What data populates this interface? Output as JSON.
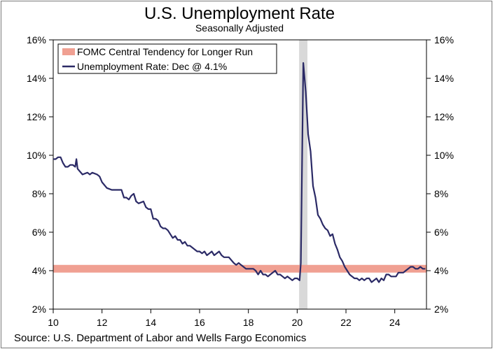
{
  "chart_data": {
    "type": "line",
    "title": "U.S. Unemployment Rate",
    "subtitle": "Seasonally Adjusted",
    "xlabel": "",
    "ylabel": "",
    "source": "Source: U.S. Department of Labor and Wells Fargo Economics",
    "xlim": [
      2010,
      2025.3
    ],
    "ylim": [
      2,
      16
    ],
    "x_ticks": [
      10,
      12,
      14,
      16,
      18,
      20,
      22,
      24
    ],
    "y_ticks": [
      2,
      4,
      6,
      8,
      10,
      12,
      14,
      16
    ],
    "y_tick_suffix": "%",
    "grid": false,
    "legend_placement": "top-left",
    "recession_band": {
      "start": 2020.08,
      "end": 2020.42,
      "color": "#d9d9d9"
    },
    "fomc_band": {
      "name": "FOMC Central Tendency for Longer Run",
      "low": 3.9,
      "high": 4.3,
      "color": "#f0a092"
    },
    "series": [
      {
        "name": "Unemployment Rate: Dec @ 4.1%",
        "color": "#2b2a66",
        "points": [
          [
            2010.0,
            9.8
          ],
          [
            2010.1,
            9.8
          ],
          [
            2010.2,
            9.9
          ],
          [
            2010.3,
            9.9
          ],
          [
            2010.4,
            9.6
          ],
          [
            2010.5,
            9.4
          ],
          [
            2010.6,
            9.4
          ],
          [
            2010.7,
            9.5
          ],
          [
            2010.8,
            9.5
          ],
          [
            2010.9,
            9.4
          ],
          [
            2010.95,
            9.8
          ],
          [
            2011.0,
            9.3
          ],
          [
            2011.2,
            9.0
          ],
          [
            2011.4,
            9.1
          ],
          [
            2011.5,
            9.0
          ],
          [
            2011.6,
            9.1
          ],
          [
            2011.8,
            9.0
          ],
          [
            2011.9,
            8.9
          ],
          [
            2012.0,
            8.6
          ],
          [
            2012.2,
            8.3
          ],
          [
            2012.4,
            8.2
          ],
          [
            2012.6,
            8.2
          ],
          [
            2012.8,
            8.2
          ],
          [
            2012.9,
            7.8
          ],
          [
            2013.0,
            7.8
          ],
          [
            2013.1,
            7.7
          ],
          [
            2013.2,
            7.9
          ],
          [
            2013.3,
            8.0
          ],
          [
            2013.4,
            7.6
          ],
          [
            2013.5,
            7.5
          ],
          [
            2013.7,
            7.6
          ],
          [
            2013.8,
            7.3
          ],
          [
            2013.9,
            7.2
          ],
          [
            2014.0,
            7.2
          ],
          [
            2014.1,
            6.7
          ],
          [
            2014.2,
            6.7
          ],
          [
            2014.3,
            6.6
          ],
          [
            2014.4,
            6.3
          ],
          [
            2014.5,
            6.2
          ],
          [
            2014.6,
            6.2
          ],
          [
            2014.7,
            6.1
          ],
          [
            2014.8,
            5.9
          ],
          [
            2014.9,
            5.7
          ],
          [
            2015.0,
            5.8
          ],
          [
            2015.1,
            5.6
          ],
          [
            2015.2,
            5.6
          ],
          [
            2015.3,
            5.4
          ],
          [
            2015.4,
            5.5
          ],
          [
            2015.5,
            5.3
          ],
          [
            2015.6,
            5.3
          ],
          [
            2015.8,
            5.1
          ],
          [
            2015.9,
            5.0
          ],
          [
            2016.0,
            5.0
          ],
          [
            2016.1,
            4.9
          ],
          [
            2016.2,
            5.0
          ],
          [
            2016.3,
            4.8
          ],
          [
            2016.4,
            4.9
          ],
          [
            2016.5,
            5.0
          ],
          [
            2016.6,
            4.8
          ],
          [
            2016.7,
            4.9
          ],
          [
            2016.8,
            5.0
          ],
          [
            2016.9,
            4.8
          ],
          [
            2017.0,
            4.7
          ],
          [
            2017.2,
            4.7
          ],
          [
            2017.4,
            4.4
          ],
          [
            2017.5,
            4.3
          ],
          [
            2017.6,
            4.4
          ],
          [
            2017.7,
            4.3
          ],
          [
            2017.8,
            4.2
          ],
          [
            2017.9,
            4.1
          ],
          [
            2018.0,
            4.1
          ],
          [
            2018.2,
            4.1
          ],
          [
            2018.3,
            4.0
          ],
          [
            2018.4,
            3.8
          ],
          [
            2018.5,
            4.0
          ],
          [
            2018.6,
            3.8
          ],
          [
            2018.7,
            3.8
          ],
          [
            2018.8,
            3.7
          ],
          [
            2018.9,
            3.8
          ],
          [
            2019.0,
            3.9
          ],
          [
            2019.1,
            4.0
          ],
          [
            2019.2,
            3.8
          ],
          [
            2019.3,
            3.8
          ],
          [
            2019.4,
            3.7
          ],
          [
            2019.5,
            3.6
          ],
          [
            2019.6,
            3.7
          ],
          [
            2019.7,
            3.6
          ],
          [
            2019.8,
            3.5
          ],
          [
            2019.9,
            3.6
          ],
          [
            2020.0,
            3.6
          ],
          [
            2020.1,
            3.5
          ],
          [
            2020.15,
            4.4
          ],
          [
            2020.25,
            14.8
          ],
          [
            2020.35,
            13.3
          ],
          [
            2020.45,
            11.1
          ],
          [
            2020.55,
            10.2
          ],
          [
            2020.65,
            8.4
          ],
          [
            2020.75,
            7.8
          ],
          [
            2020.85,
            6.9
          ],
          [
            2020.95,
            6.7
          ],
          [
            2021.05,
            6.4
          ],
          [
            2021.15,
            6.2
          ],
          [
            2021.25,
            6.1
          ],
          [
            2021.35,
            5.8
          ],
          [
            2021.45,
            5.9
          ],
          [
            2021.55,
            5.4
          ],
          [
            2021.65,
            5.1
          ],
          [
            2021.75,
            4.7
          ],
          [
            2021.85,
            4.5
          ],
          [
            2021.95,
            4.2
          ],
          [
            2022.05,
            4.0
          ],
          [
            2022.15,
            3.8
          ],
          [
            2022.25,
            3.7
          ],
          [
            2022.35,
            3.6
          ],
          [
            2022.45,
            3.6
          ],
          [
            2022.55,
            3.5
          ],
          [
            2022.65,
            3.6
          ],
          [
            2022.75,
            3.5
          ],
          [
            2022.85,
            3.6
          ],
          [
            2022.95,
            3.6
          ],
          [
            2023.05,
            3.4
          ],
          [
            2023.15,
            3.5
          ],
          [
            2023.25,
            3.6
          ],
          [
            2023.35,
            3.4
          ],
          [
            2023.45,
            3.6
          ],
          [
            2023.55,
            3.5
          ],
          [
            2023.65,
            3.8
          ],
          [
            2023.75,
            3.8
          ],
          [
            2023.85,
            3.7
          ],
          [
            2023.95,
            3.7
          ],
          [
            2024.05,
            3.7
          ],
          [
            2024.15,
            3.9
          ],
          [
            2024.25,
            3.9
          ],
          [
            2024.35,
            3.9
          ],
          [
            2024.45,
            4.0
          ],
          [
            2024.55,
            4.1
          ],
          [
            2024.65,
            4.2
          ],
          [
            2024.75,
            4.2
          ],
          [
            2024.85,
            4.1
          ],
          [
            2024.95,
            4.1
          ],
          [
            2025.05,
            4.2
          ],
          [
            2025.15,
            4.1
          ],
          [
            2025.25,
            4.1
          ]
        ]
      }
    ]
  }
}
